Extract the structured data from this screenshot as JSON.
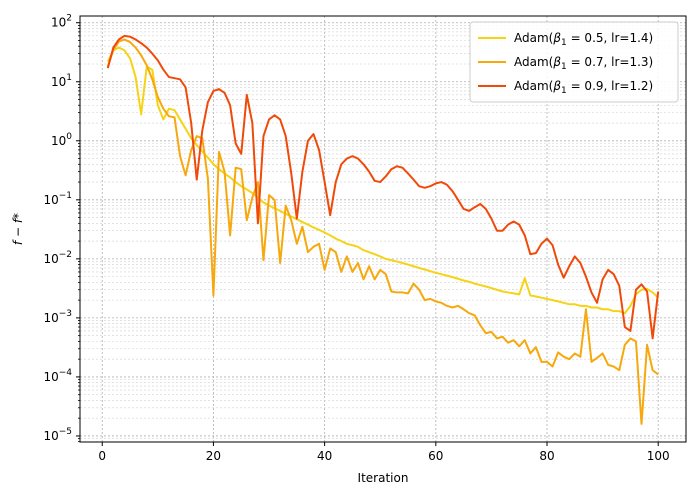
{
  "chart_data": {
    "type": "line",
    "title": "",
    "xlabel": "Iteration",
    "ylabel": "f − f*",
    "xlim": [
      -4,
      105
    ],
    "ylim": [
      7.9e-06,
      130
    ],
    "yscale": "log",
    "grid": "on (major and minor, dotted)",
    "legend_placement": "top-right",
    "x_ticks": [
      0,
      20,
      40,
      60,
      80,
      100
    ],
    "y_ticks": [
      1e-05,
      0.0001,
      0.001,
      0.01,
      0.1,
      1,
      10,
      100
    ],
    "y_tick_labels": [
      "10^-5",
      "10^-4",
      "10^-3",
      "10^-2",
      "10^-1",
      "10^0",
      "10^1",
      "10^2"
    ],
    "series": [
      {
        "name": "Adam(β1 = 0.5, lr=1.4)",
        "legend_main": "Adam(",
        "legend_beta": "β",
        "legend_sub": "1",
        "legend_rest": " = 0.5, lr=1.4)",
        "color": "#f5d317",
        "x": [
          1,
          2,
          3,
          4,
          5,
          6,
          7,
          8,
          9,
          10,
          11,
          12,
          13,
          14,
          15,
          16,
          17,
          18,
          19,
          20,
          21,
          22,
          23,
          24,
          25,
          26,
          27,
          28,
          29,
          30,
          31,
          32,
          33,
          34,
          35,
          36,
          37,
          38,
          39,
          40,
          41,
          42,
          43,
          44,
          45,
          46,
          47,
          48,
          49,
          50,
          51,
          52,
          53,
          54,
          55,
          56,
          57,
          58,
          59,
          60,
          61,
          62,
          63,
          64,
          65,
          66,
          67,
          68,
          69,
          70,
          71,
          72,
          73,
          74,
          75,
          76,
          77,
          78,
          79,
          80,
          81,
          82,
          83,
          84,
          85,
          86,
          87,
          88,
          89,
          90,
          91,
          92,
          93,
          94,
          95,
          96,
          97,
          98,
          99,
          100
        ],
        "values": [
          22,
          34,
          38,
          34,
          25,
          12,
          2.8,
          18,
          16,
          4,
          2.3,
          3.5,
          3.3,
          2.3,
          1.6,
          1.1,
          0.85,
          0.66,
          0.52,
          0.4,
          0.33,
          0.28,
          0.24,
          0.2,
          0.17,
          0.15,
          0.13,
          0.11,
          0.09,
          0.08,
          0.072,
          0.065,
          0.058,
          0.052,
          0.047,
          0.042,
          0.038,
          0.034,
          0.031,
          0.028,
          0.025,
          0.022,
          0.02,
          0.018,
          0.017,
          0.016,
          0.014,
          0.013,
          0.012,
          0.011,
          0.01,
          0.0095,
          0.009,
          0.0085,
          0.008,
          0.0075,
          0.007,
          0.0066,
          0.0062,
          0.0058,
          0.0055,
          0.0052,
          0.0049,
          0.0046,
          0.0043,
          0.0041,
          0.0038,
          0.0036,
          0.0034,
          0.0032,
          0.003,
          0.0028,
          0.0027,
          0.0026,
          0.0025,
          0.0047,
          0.0024,
          0.0023,
          0.0022,
          0.0021,
          0.002,
          0.0019,
          0.0018,
          0.0017,
          0.0017,
          0.0016,
          0.0016,
          0.0015,
          0.0015,
          0.0014,
          0.0014,
          0.0013,
          0.0013,
          0.0012,
          0.0016,
          0.0025,
          0.003,
          0.0031,
          0.0027,
          0.0022
        ]
      },
      {
        "name": "Adam(β1 = 0.7, lr=1.3)",
        "legend_main": "Adam(",
        "legend_beta": "β",
        "legend_sub": "1",
        "legend_rest": " = 0.7, lr=1.3)",
        "color": "#f7a80c",
        "x": [
          1,
          2,
          3,
          4,
          5,
          6,
          7,
          8,
          9,
          10,
          11,
          12,
          13,
          14,
          15,
          16,
          17,
          18,
          19,
          20,
          21,
          22,
          23,
          24,
          25,
          26,
          27,
          28,
          29,
          30,
          31,
          32,
          33,
          34,
          35,
          36,
          37,
          38,
          39,
          40,
          41,
          42,
          43,
          44,
          45,
          46,
          47,
          48,
          49,
          50,
          51,
          52,
          53,
          54,
          55,
          56,
          57,
          58,
          59,
          60,
          61,
          62,
          63,
          64,
          65,
          66,
          67,
          68,
          69,
          70,
          71,
          72,
          73,
          74,
          75,
          76,
          77,
          78,
          79,
          80,
          81,
          82,
          83,
          84,
          85,
          86,
          87,
          88,
          89,
          90,
          91,
          92,
          93,
          94,
          95,
          96,
          97,
          98,
          99,
          100
        ],
        "values": [
          18,
          35,
          48,
          52,
          47,
          38,
          28,
          19,
          11,
          5.5,
          3.5,
          2.6,
          2.5,
          0.55,
          0.26,
          0.7,
          1.2,
          1.1,
          0.23,
          0.0024,
          0.65,
          0.3,
          0.025,
          0.35,
          0.33,
          0.045,
          0.11,
          0.2,
          0.0095,
          0.12,
          0.1,
          0.0085,
          0.08,
          0.045,
          0.018,
          0.035,
          0.013,
          0.016,
          0.018,
          0.0065,
          0.015,
          0.013,
          0.006,
          0.011,
          0.006,
          0.0085,
          0.0045,
          0.0075,
          0.0045,
          0.0065,
          0.0055,
          0.0028,
          0.0027,
          0.0027,
          0.0026,
          0.0038,
          0.003,
          0.002,
          0.0021,
          0.0019,
          0.0018,
          0.0016,
          0.0015,
          0.0016,
          0.0014,
          0.0012,
          0.0011,
          0.00075,
          0.00055,
          0.00058,
          0.00045,
          0.00048,
          0.00038,
          0.00042,
          0.00033,
          0.00042,
          0.00025,
          0.00032,
          0.00018,
          0.00018,
          0.00015,
          0.00026,
          0.00022,
          0.0002,
          0.00025,
          0.00022,
          0.0014,
          0.00018,
          0.00021,
          0.00025,
          0.00016,
          0.00015,
          0.00013,
          0.00035,
          0.00045,
          0.0004,
          1.6e-05,
          0.00035,
          0.00013,
          0.00011
        ]
      },
      {
        "name": "Adam(β1 = 0.9, lr=1.2)",
        "legend_main": "Adam(",
        "legend_beta": "β",
        "legend_sub": "1",
        "legend_rest": " = 0.9, lr=1.2)",
        "color": "#f04a0a",
        "x": [
          1,
          2,
          3,
          4,
          5,
          6,
          7,
          8,
          9,
          10,
          11,
          12,
          13,
          14,
          15,
          16,
          17,
          18,
          19,
          20,
          21,
          22,
          23,
          24,
          25,
          26,
          27,
          28,
          29,
          30,
          31,
          32,
          33,
          34,
          35,
          36,
          37,
          38,
          39,
          40,
          41,
          42,
          43,
          44,
          45,
          46,
          47,
          48,
          49,
          50,
          51,
          52,
          53,
          54,
          55,
          56,
          57,
          58,
          59,
          60,
          61,
          62,
          63,
          64,
          65,
          66,
          67,
          68,
          69,
          70,
          71,
          72,
          73,
          74,
          75,
          76,
          77,
          78,
          79,
          80,
          81,
          82,
          83,
          84,
          85,
          86,
          87,
          88,
          89,
          90,
          91,
          92,
          93,
          94,
          95,
          96,
          97,
          98,
          99,
          100
        ],
        "values": [
          17,
          38,
          52,
          60,
          58,
          52,
          45,
          38,
          30,
          23,
          16,
          12,
          11.5,
          11,
          8,
          2,
          0.22,
          1.5,
          4.5,
          7,
          7.5,
          6.5,
          4,
          0.9,
          0.6,
          6,
          2,
          0.04,
          1.2,
          2.3,
          2.7,
          2.3,
          1.2,
          0.28,
          0.048,
          0.3,
          1,
          1.3,
          0.7,
          0.2,
          0.055,
          0.2,
          0.4,
          0.5,
          0.55,
          0.5,
          0.4,
          0.3,
          0.21,
          0.2,
          0.25,
          0.33,
          0.37,
          0.35,
          0.28,
          0.22,
          0.17,
          0.16,
          0.17,
          0.19,
          0.2,
          0.18,
          0.14,
          0.1,
          0.07,
          0.065,
          0.075,
          0.085,
          0.07,
          0.048,
          0.03,
          0.03,
          0.038,
          0.043,
          0.038,
          0.025,
          0.012,
          0.0125,
          0.018,
          0.022,
          0.017,
          0.008,
          0.0048,
          0.0075,
          0.011,
          0.0085,
          0.005,
          0.0027,
          0.0018,
          0.0045,
          0.0065,
          0.0055,
          0.0035,
          0.0007,
          0.0006,
          0.003,
          0.0037,
          0.0028,
          0.00045,
          0.0028
        ]
      }
    ]
  }
}
